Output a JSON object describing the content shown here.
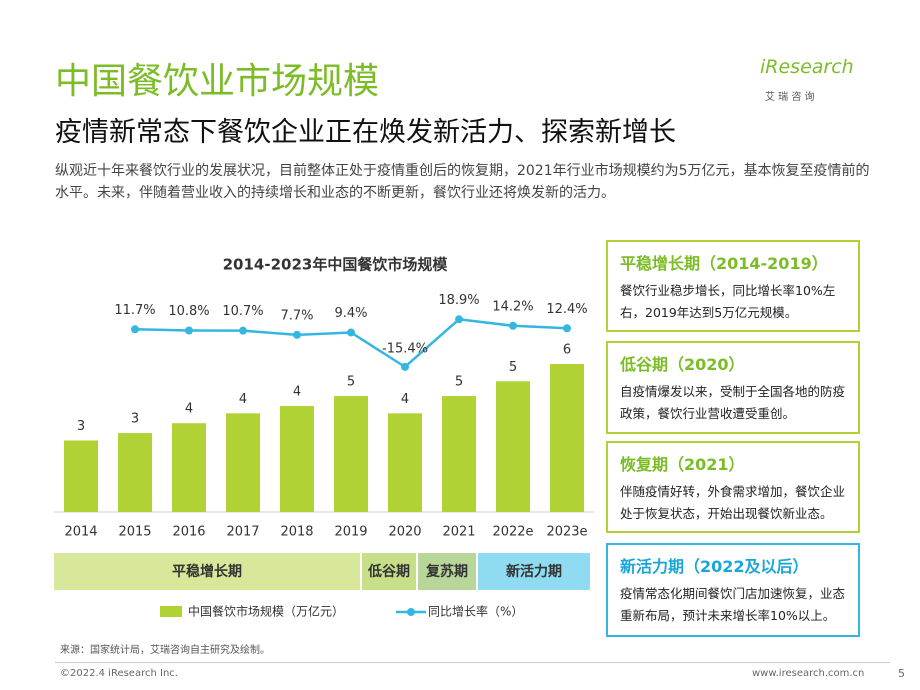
{
  "header": {
    "title": "中国餐饮业市场规模",
    "subtitle": "疫情新常态下餐饮企业正在焕发新活力、探索新增长",
    "intro": "纵观近十年来餐饮行业的发展状况，目前整体正处于疫情重创后的恢复期，2021年行业市场规模约为5万亿元，基本恢复至疫情前的水平。未来，伴随着营业收入的持续增长和业态的不断更新，餐饮行业还将焕发新的活力。",
    "logo": "iResearch",
    "logo_sub": "艾 瑞 咨 询"
  },
  "chart_data": {
    "type": "bar",
    "title": "2014-2023年中国餐饮市场规模",
    "categories": [
      "2014",
      "2015",
      "2016",
      "2017",
      "2018",
      "2019",
      "2020",
      "2021",
      "2022e",
      "2023e"
    ],
    "series": [
      {
        "name": "中国餐饮市场规模（万亿元）",
        "type": "bar",
        "color": "#b0d235",
        "values": [
          2.9,
          3.2,
          3.6,
          4.0,
          4.3,
          4.7,
          4.0,
          4.7,
          5.3,
          6.0
        ],
        "value_labels": [
          "3",
          "3",
          "4",
          "4",
          "4",
          "5",
          "4",
          "5",
          "5",
          "6"
        ]
      },
      {
        "name": "同比增长率（%）",
        "type": "line",
        "axis": "y2",
        "color": "#35b6e0",
        "values": [
          null,
          11.7,
          10.8,
          10.7,
          7.7,
          9.4,
          -15.4,
          18.9,
          14.2,
          12.4
        ],
        "value_labels": [
          null,
          "11.7%",
          "10.8%",
          "10.7%",
          "7.7%",
          "9.4%",
          "-15.4%",
          "18.9%",
          "14.2%",
          "12.4%"
        ]
      }
    ],
    "ylim": [
      0,
      9
    ],
    "y2lim": [
      -120,
      40
    ],
    "phases": [
      "平稳增长期",
      "低谷期",
      "复苏期",
      "新活力期"
    ]
  },
  "panels": [
    {
      "title": "平稳增长期（2014-2019）",
      "text": "餐饮行业稳步增长，同比增长率10%左右，2019年达到5万亿元规模。"
    },
    {
      "title": "低谷期（2020）",
      "text": "自疫情爆发以来，受制于全国各地的防疫政策，餐饮行业营收遭受重创。"
    },
    {
      "title": "恢复期（2021）",
      "text": "伴随疫情好转，外食需求增加，餐饮企业处于恢复状态，开始出现餐饮新业态。"
    },
    {
      "title": "新活力期（2022及以后）",
      "text": "疫情常态化期间餐饮门店加速恢复，业态重新布局，预计未来增长率10%以上。"
    }
  ],
  "footer": {
    "source": "来源：国家统计局，艾瑞咨询自主研究及绘制。",
    "copyright": "©2022.4 iResearch Inc.",
    "url": "www.iresearch.com.cn",
    "page": "5"
  }
}
